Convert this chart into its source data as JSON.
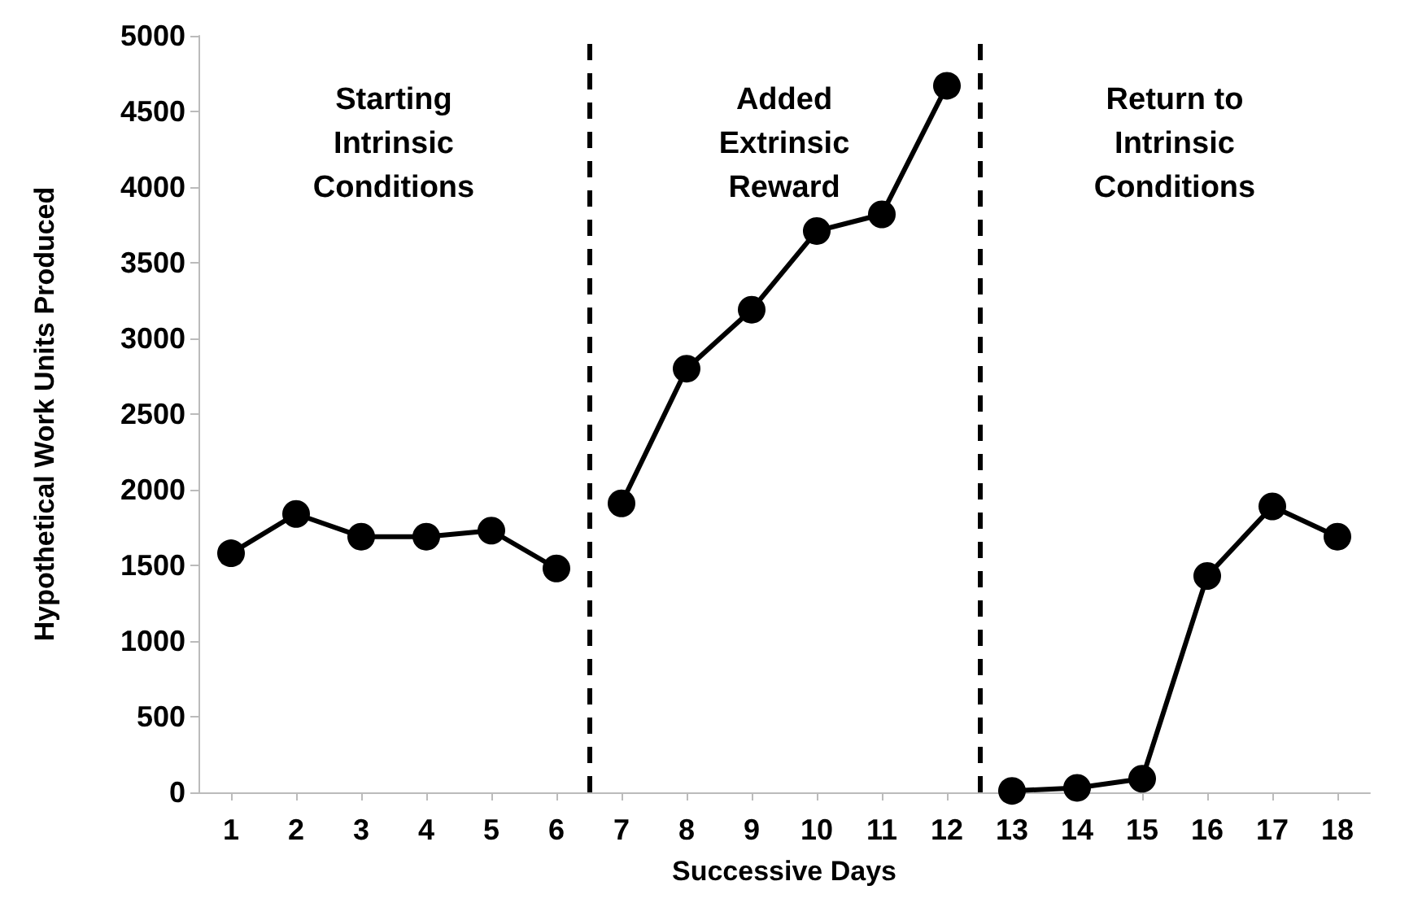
{
  "chart_data": {
    "type": "line",
    "xlabel": "Successive Days",
    "ylabel": "Hypothetical Work Units Produced",
    "xlim": [
      0.5,
      18.5
    ],
    "xticks": [
      1,
      2,
      3,
      4,
      5,
      6,
      7,
      8,
      9,
      10,
      11,
      12,
      13,
      14,
      15,
      16,
      17,
      18
    ],
    "ylim": [
      0,
      5000
    ],
    "yticks": [
      0,
      500,
      1000,
      1500,
      2000,
      2500,
      3000,
      3500,
      4000,
      4500,
      5000
    ],
    "series": [
      {
        "color": "#000000",
        "x": [
          1,
          2,
          3,
          4,
          5,
          6
        ],
        "values": [
          1580,
          1840,
          1690,
          1690,
          1730,
          1480
        ]
      },
      {
        "color": "#000000",
        "x": [
          7,
          8,
          9,
          10,
          11,
          12
        ],
        "values": [
          1910,
          2800,
          3190,
          3710,
          3820,
          4670
        ]
      },
      {
        "color": "#000000",
        "x": [
          13,
          14,
          15,
          16,
          17,
          18
        ],
        "values": [
          10,
          30,
          90,
          1430,
          1890,
          1690
        ]
      }
    ],
    "ref_lines": [
      {
        "axis": "x",
        "value": 6.5,
        "color": "#000000",
        "line_style": "dashed"
      },
      {
        "axis": "x",
        "value": 12.5,
        "color": "#000000",
        "line_style": "dashed"
      }
    ],
    "annotations": [
      "Starting\nIntrinsic\nConditions",
      "Added\nExtrinsic\nReward",
      "Return to\nIntrinsic\nConditions"
    ],
    "marker": "circle",
    "line_style": "solid",
    "grid": false,
    "legend": false
  }
}
